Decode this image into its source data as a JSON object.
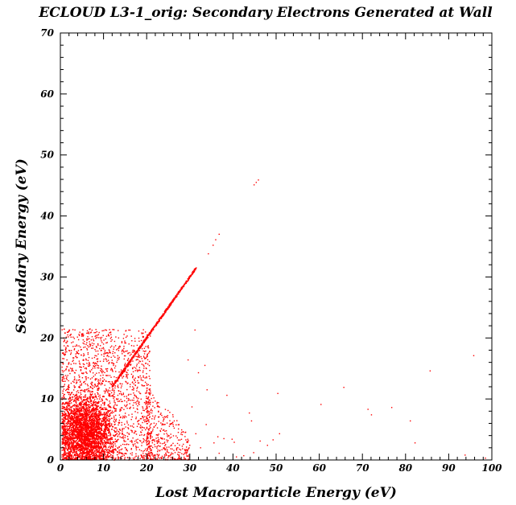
{
  "chart_data": {
    "type": "scatter",
    "title": "ECLOUD L3-1_orig: Secondary Electrons Generated at Wall",
    "xlabel": "Lost Macroparticle Energy (eV)",
    "ylabel": "Secondary Energy (eV)",
    "xlim": [
      0,
      100
    ],
    "ylim": [
      0,
      70
    ],
    "xticks": [
      0,
      10,
      20,
      30,
      40,
      50,
      60,
      70,
      80,
      90,
      100
    ],
    "yticks": [
      0,
      10,
      20,
      30,
      40,
      50,
      60,
      70
    ],
    "grid": false,
    "marker_color": "#ff0000",
    "series": [
      {
        "dense_regions": [
          {
            "x_range": [
              0,
              20
            ],
            "y_range": [
              0,
              21.5
            ],
            "note_points": "dense cloud, most points below x=15 and y=12"
          },
          {
            "x_range": [
              20,
              30
            ],
            "y_range": [
              0,
              12
            ],
            "note_points": "sparser tail"
          }
        ],
        "diagonal_line": {
          "x_range": [
            0,
            31.5
          ],
          "slope": 1
        },
        "points": [
          [
            34.3,
            33.8
          ],
          [
            35.4,
            35.2
          ],
          [
            36.0,
            36.1
          ],
          [
            36.8,
            37.0
          ],
          [
            44.9,
            45.1
          ],
          [
            45.4,
            45.5
          ],
          [
            45.9,
            45.9
          ],
          [
            31.2,
            21.3
          ],
          [
            33.5,
            15.5
          ],
          [
            32.0,
            14.3
          ],
          [
            34.0,
            11.5
          ],
          [
            33.8,
            5.8
          ],
          [
            30.5,
            8.7
          ],
          [
            31.4,
            4.3
          ],
          [
            32.5,
            2.0
          ],
          [
            35.6,
            2.8
          ],
          [
            36.5,
            3.8
          ],
          [
            37.9,
            3.5
          ],
          [
            38.6,
            10.6
          ],
          [
            39.8,
            3.4
          ],
          [
            40.3,
            2.9
          ],
          [
            42.5,
            0.7
          ],
          [
            43.8,
            7.7
          ],
          [
            44.3,
            6.4
          ],
          [
            44.8,
            1.2
          ],
          [
            46.3,
            3.1
          ],
          [
            48.0,
            2.4
          ],
          [
            49.3,
            3.3
          ],
          [
            50.4,
            10.9
          ],
          [
            50.8,
            4.3
          ],
          [
            36.8,
            1.1
          ],
          [
            60.4,
            9.1
          ],
          [
            65.7,
            11.9
          ],
          [
            71.3,
            8.3
          ],
          [
            72.1,
            7.4
          ],
          [
            76.8,
            8.6
          ],
          [
            81.1,
            6.4
          ],
          [
            82.2,
            2.8
          ],
          [
            85.7,
            14.6
          ],
          [
            93.8,
            0.8
          ],
          [
            95.8,
            17.1
          ],
          [
            98.5,
            0.3
          ],
          [
            40.8,
            0.5
          ],
          [
            29.6,
            16.4
          ]
        ]
      }
    ]
  }
}
